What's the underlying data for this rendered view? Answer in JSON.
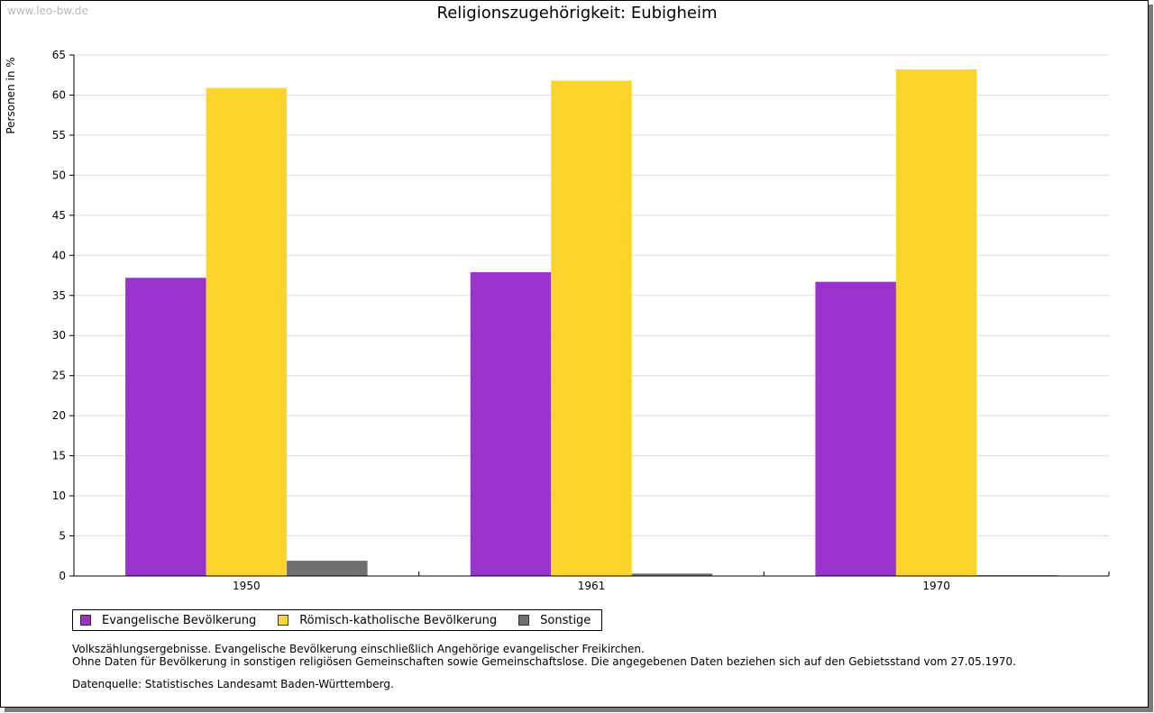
{
  "watermark": "www.leo-bw.de",
  "chart_data": {
    "type": "bar",
    "title": "Religionszugehörigkeit: Eubigheim",
    "xlabel": "",
    "ylabel": "Personen in %",
    "ylim": [
      0,
      65
    ],
    "yticks": [
      0,
      5,
      10,
      15,
      20,
      25,
      30,
      35,
      40,
      45,
      50,
      55,
      60,
      65
    ],
    "grid": true,
    "categories": [
      "1950",
      "1961",
      "1970"
    ],
    "series": [
      {
        "name": "Evangelische Bevölkerung",
        "color": "#9933cc",
        "values": [
          37.2,
          37.9,
          36.7
        ]
      },
      {
        "name": "Römisch-katholische Bevölkerung",
        "color": "#fcd52c",
        "values": [
          60.9,
          61.8,
          63.2
        ]
      },
      {
        "name": "Sonstige",
        "color": "#707070",
        "values": [
          1.9,
          0.3,
          0.1
        ]
      }
    ],
    "legend_position": "bottom-left"
  },
  "notes": [
    "Volkszählungsergebnisse. Evangelische Bevölkerung einschließlich Angehörige evangelischer Freikirchen.",
    "Ohne Daten für Bevölkerung in sonstigen religiösen Gemeinschaften sowie Gemeinschaftslose. Die angegebenen Daten beziehen sich auf den Gebietsstand vom 27.05.1970."
  ],
  "source": "Datenquelle: Statistisches Landesamt Baden-Württemberg."
}
